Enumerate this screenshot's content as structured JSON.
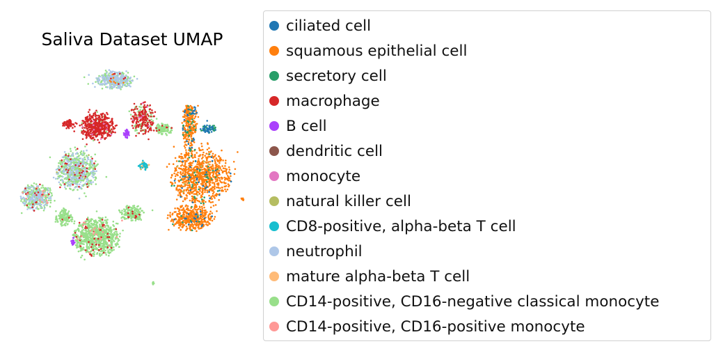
{
  "chart_data": {
    "type": "scatter",
    "title": "Saliva Dataset UMAP",
    "xlabel": "",
    "ylabel": "",
    "axes_visible": false,
    "grid": false,
    "legend_position": "right",
    "series": [
      {
        "name": "ciliated cell",
        "color": "#1f77b4"
      },
      {
        "name": "squamous epithelial cell",
        "color": "#ff7f0e"
      },
      {
        "name": "secretory cell",
        "color": "#279e68"
      },
      {
        "name": "macrophage",
        "color": "#d62728"
      },
      {
        "name": "B cell",
        "color": "#aa40fc"
      },
      {
        "name": "dendritic cell",
        "color": "#8c564b"
      },
      {
        "name": "monocyte",
        "color": "#e377c2"
      },
      {
        "name": "natural killer cell",
        "color": "#b5bd61"
      },
      {
        "name": "CD8-positive, alpha-beta T cell",
        "color": "#17becf"
      },
      {
        "name": "neutrophil",
        "color": "#aec7e8"
      },
      {
        "name": "mature alpha-beta T cell",
        "color": "#ffbb78"
      },
      {
        "name": "CD14-positive, CD16-negative classical monocyte",
        "color": "#98df8a"
      },
      {
        "name": "CD14-positive, CD16-positive monocyte",
        "color": "#ff9896"
      }
    ]
  }
}
